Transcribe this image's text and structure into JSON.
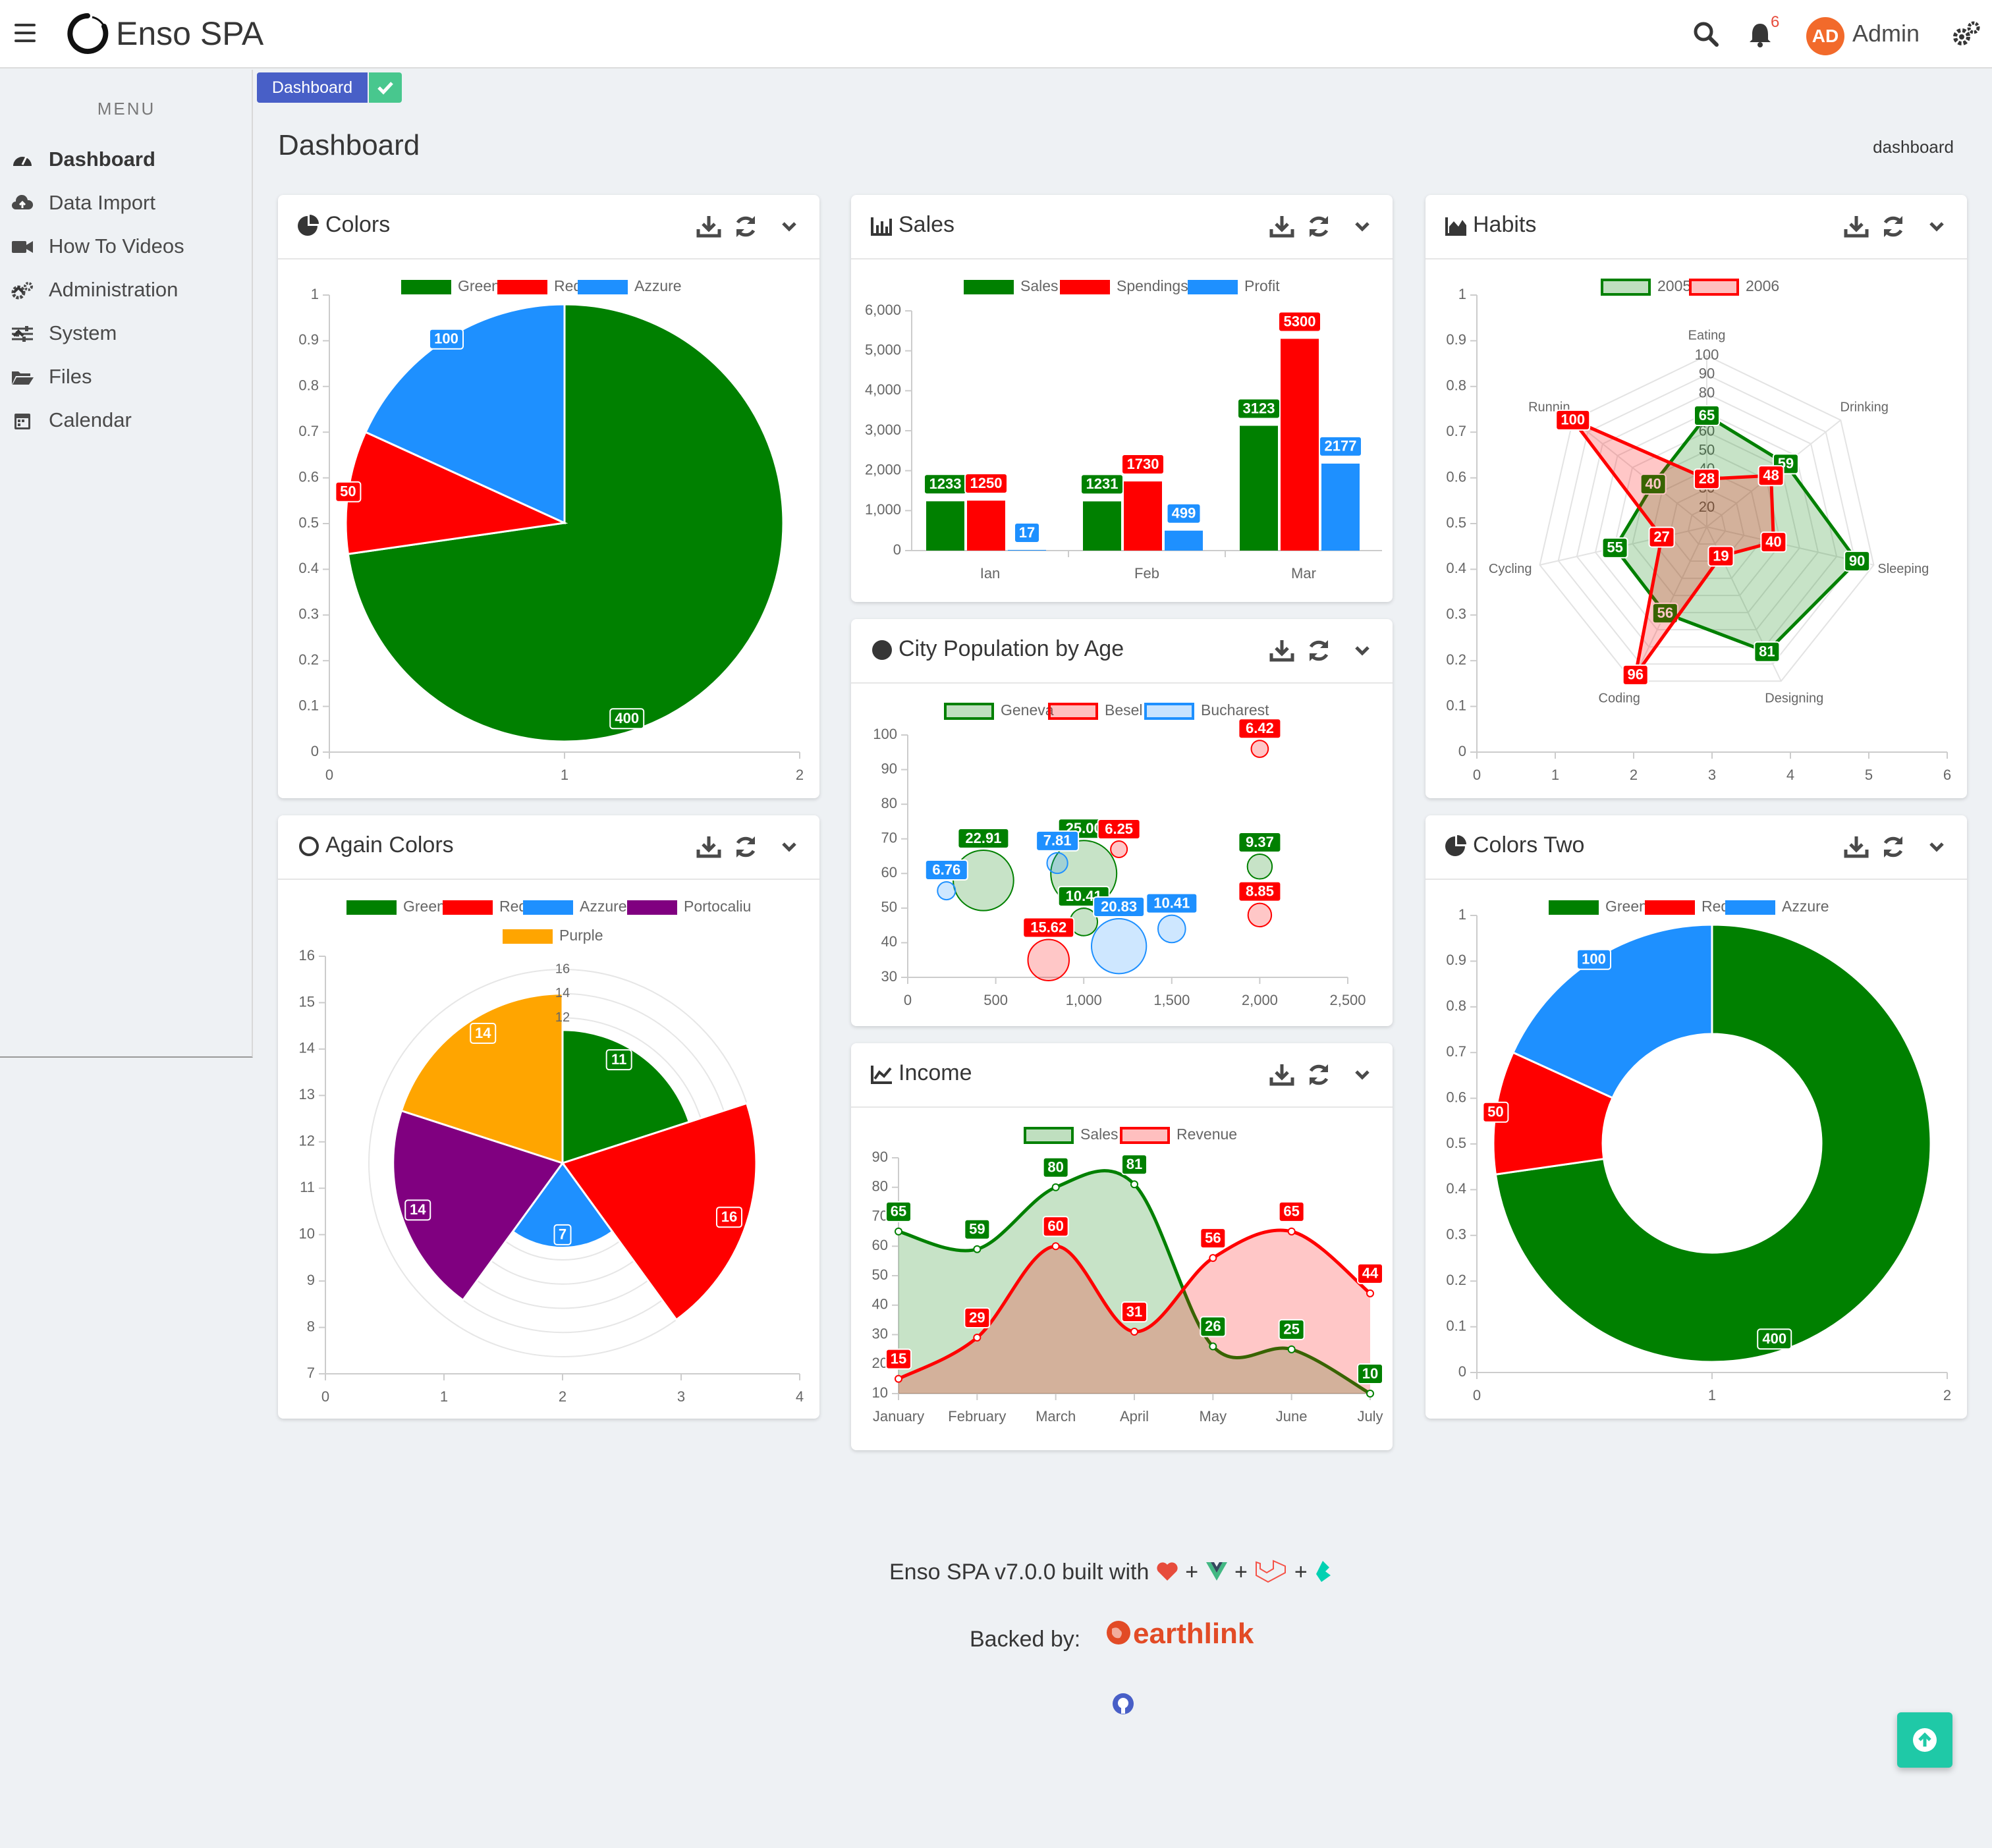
{
  "app": {
    "brand": "Enso SPA",
    "notifications_count": "6",
    "user_initials": "AD",
    "user_name": "Admin"
  },
  "sidebar": {
    "title": "MENU",
    "items": [
      {
        "label": "Dashboard",
        "icon": "tachometer-icon"
      },
      {
        "label": "Data Import",
        "icon": "cloud-upload-icon"
      },
      {
        "label": "How To Videos",
        "icon": "video-camera-icon"
      },
      {
        "label": "Administration",
        "icon": "cogs-icon"
      },
      {
        "label": "System",
        "icon": "sliders-icon"
      },
      {
        "label": "Files",
        "icon": "folder-open-icon"
      },
      {
        "label": "Calendar",
        "icon": "calendar-icon"
      }
    ]
  },
  "bookmark": {
    "label": "Dashboard"
  },
  "page": {
    "title": "Dashboard",
    "breadcrumb": "dashboard"
  },
  "colors": {
    "green": "#008000",
    "red": "#ff0000",
    "azure": "#1e90ff",
    "purple": "#800080",
    "orange": "#ffa500",
    "brand": "#485fc7",
    "teal": "#1fc9a7"
  },
  "cards": {
    "colors": {
      "title": "Colors"
    },
    "sales": {
      "title": "Sales"
    },
    "habits": {
      "title": "Habits"
    },
    "population": {
      "title": "City Population by Age"
    },
    "again_colors": {
      "title": "Again Colors"
    },
    "income": {
      "title": "Income"
    },
    "colors_two": {
      "title": "Colors Two"
    }
  },
  "chart_data": [
    {
      "id": "colors",
      "type": "pie",
      "labels": [
        "Green",
        "Red",
        "Azzure"
      ],
      "values": [
        400,
        50,
        100
      ],
      "colors": [
        "#008000",
        "#ff0000",
        "#1e90ff"
      ],
      "axis_x_ticks": [
        "0",
        "1",
        "2"
      ],
      "axis_y_ticks": [
        "0",
        "0.1",
        "0.2",
        "0.3",
        "0.4",
        "0.5",
        "0.6",
        "0.7",
        "0.8",
        "0.9",
        "1"
      ],
      "legend": "top"
    },
    {
      "id": "sales",
      "type": "bar",
      "categories": [
        "Ian",
        "Feb",
        "Mar"
      ],
      "series": [
        {
          "name": "Sales",
          "values": [
            1233,
            1231,
            3123
          ],
          "color": "#008000"
        },
        {
          "name": "Spendings",
          "values": [
            1250,
            1730,
            5300
          ],
          "color": "#ff0000"
        },
        {
          "name": "Profit",
          "values": [
            17,
            499,
            2177
          ],
          "color": "#1e90ff"
        }
      ],
      "axis_y_ticks": [
        "0",
        "1,000",
        "2,000",
        "3,000",
        "4,000",
        "5,000",
        "6,000"
      ],
      "ylim": [
        0,
        6000
      ],
      "legend": "top"
    },
    {
      "id": "habits",
      "type": "radar",
      "categories": [
        "Eating",
        "Drinking",
        "Sleeping",
        "Designing",
        "Coding",
        "Cycling",
        "Runnin"
      ],
      "series": [
        {
          "name": "2005",
          "values": [
            65,
            59,
            90,
            81,
            56,
            55,
            40
          ],
          "color": "#008000"
        },
        {
          "name": "2006",
          "values": [
            28,
            48,
            40,
            19,
            96,
            27,
            100
          ],
          "color": "#ff0000"
        }
      ],
      "radial_ticks": [
        "20",
        "30",
        "40",
        "50",
        "60",
        "70",
        "80",
        "90",
        "100"
      ],
      "axis_x_ticks": [
        "0",
        "1",
        "2",
        "3",
        "4",
        "5",
        "6"
      ],
      "axis_y_ticks": [
        "0",
        "0.1",
        "0.2",
        "0.3",
        "0.4",
        "0.5",
        "0.6",
        "0.7",
        "0.8",
        "0.9",
        "1"
      ],
      "legend": "top"
    },
    {
      "id": "population",
      "type": "scatter",
      "series": [
        {
          "name": "Geneva",
          "color": "#008000",
          "points": [
            {
              "x": 430,
              "y": 58,
              "label": "22.91"
            },
            {
              "x": 1000,
              "y": 60,
              "label": "25.00"
            },
            {
              "x": 1000,
              "y": 46,
              "label": "10.41"
            },
            {
              "x": 2000,
              "y": 62,
              "label": "9.37"
            }
          ]
        },
        {
          "name": "Besel",
          "color": "#ff0000",
          "points": [
            {
              "x": 2000,
              "y": 96,
              "label": "6.42"
            },
            {
              "x": 1200,
              "y": 67,
              "label": "6.25"
            },
            {
              "x": 800,
              "y": 35,
              "label": "15.62"
            },
            {
              "x": 2000,
              "y": 48,
              "label": "8.85"
            }
          ]
        },
        {
          "name": "Bucharest",
          "color": "#1e90ff",
          "points": [
            {
              "x": 220,
              "y": 55,
              "label": "6.76"
            },
            {
              "x": 850,
              "y": 63,
              "label": "7.81"
            },
            {
              "x": 1200,
              "y": 39,
              "label": "20.83"
            },
            {
              "x": 1500,
              "y": 44,
              "label": "10.41"
            }
          ]
        }
      ],
      "axis_x_ticks": [
        "0",
        "500",
        "1,000",
        "1,500",
        "2,000",
        "2,500"
      ],
      "axis_y_ticks": [
        "30",
        "40",
        "50",
        "60",
        "70",
        "80",
        "90",
        "100"
      ],
      "xlim": [
        0,
        2500
      ],
      "ylim": [
        30,
        100
      ],
      "legend": "top"
    },
    {
      "id": "again_colors",
      "type": "polar-area",
      "labels": [
        "Green",
        "Red",
        "Azzure",
        "Portocaliu",
        "Purple"
      ],
      "values": [
        11,
        16,
        7,
        14,
        14
      ],
      "colors": [
        "#008000",
        "#ff0000",
        "#1e90ff",
        "#800080",
        "#ffa500"
      ],
      "radial_ticks": [
        "16",
        "14",
        "12"
      ],
      "axis_x_ticks": [
        "0",
        "1",
        "2",
        "3",
        "4"
      ],
      "axis_y_ticks": [
        "7",
        "8",
        "9",
        "10",
        "11",
        "12",
        "13",
        "14",
        "15",
        "16"
      ],
      "legend": "top"
    },
    {
      "id": "income",
      "type": "area",
      "categories": [
        "January",
        "February",
        "March",
        "April",
        "May",
        "June",
        "July"
      ],
      "series": [
        {
          "name": "Sales",
          "values": [
            65,
            59,
            80,
            81,
            26,
            25,
            10
          ],
          "color": "#008000"
        },
        {
          "name": "Revenue",
          "values": [
            15,
            29,
            60,
            31,
            56,
            65,
            44
          ],
          "color": "#ff0000"
        }
      ],
      "axis_y_ticks": [
        "10",
        "20",
        "30",
        "40",
        "50",
        "60",
        "70",
        "80",
        "90"
      ],
      "ylim": [
        10,
        90
      ],
      "legend": "top"
    },
    {
      "id": "colors_two",
      "type": "doughnut",
      "labels": [
        "Green",
        "Red",
        "Azzure"
      ],
      "values": [
        400,
        50,
        100
      ],
      "colors": [
        "#008000",
        "#ff0000",
        "#1e90ff"
      ],
      "axis_x_ticks": [
        "0",
        "1",
        "2"
      ],
      "axis_y_ticks": [
        "0",
        "0.1",
        "0.2",
        "0.3",
        "0.4",
        "0.5",
        "0.6",
        "0.7",
        "0.8",
        "0.9",
        "1"
      ],
      "legend": "top"
    }
  ],
  "footer": {
    "version_text": "Enso SPA v7.0.0 built with",
    "plus": "+",
    "backed_by": "Backed by:",
    "sponsor": "earthlink"
  }
}
